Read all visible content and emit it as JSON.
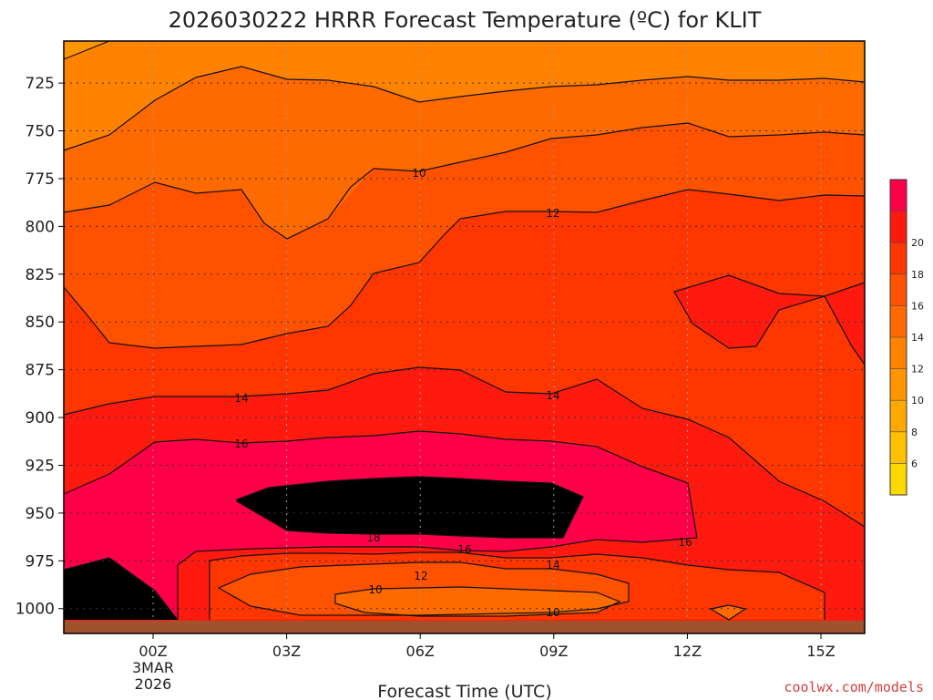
{
  "chart_data": {
    "type": "contour",
    "title": "2026030222 HRRR Forecast Temperature (ºC) for KLIT",
    "xlabel": "Forecast Time (UTC)",
    "x_ticks": [
      "00Z",
      "03Z",
      "06Z",
      "09Z",
      "12Z",
      "15Z"
    ],
    "x_first_tick_sublabels": [
      "3MAR",
      "2026"
    ],
    "y_ticks": [
      725,
      750,
      775,
      800,
      825,
      850,
      875,
      900,
      925,
      950,
      975,
      1000
    ],
    "y_axis": "pressure (hPa), increasing downward",
    "ylim": [
      703,
      1013
    ],
    "grid": "dotted",
    "colorbar": {
      "levels": [
        4,
        6,
        8,
        10,
        12,
        14,
        16,
        18,
        20,
        22
      ],
      "labels": [
        "6",
        "8",
        "10",
        "12",
        "14",
        "16",
        "18",
        "20"
      ],
      "colors": [
        "#ffd800",
        "#ffc000",
        "#ffa800",
        "#ff9600",
        "#ff8200",
        "#ff6a00",
        "#ff5200",
        "#ff3600",
        "#ff1a10",
        "#ff0048"
      ]
    },
    "contour_labels": [
      "10",
      "12",
      "14",
      "14",
      "16",
      "18",
      "16",
      "16",
      "14",
      "12",
      "10",
      "10"
    ],
    "credit": "coolwx.com/models",
    "ground_color": "#a0522d"
  }
}
